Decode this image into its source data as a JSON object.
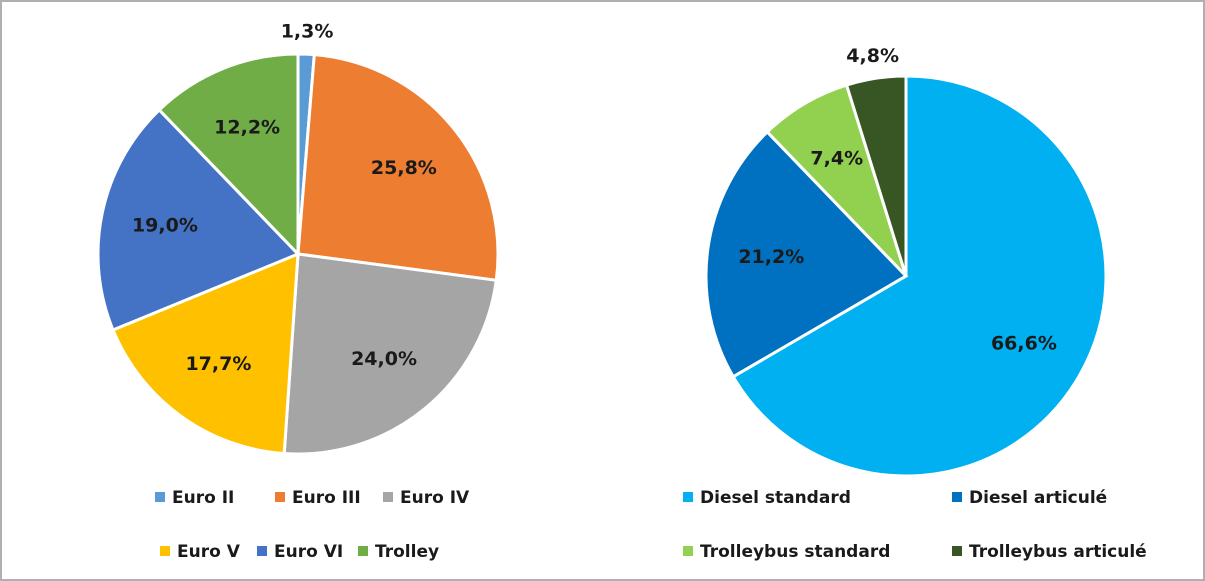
{
  "chart_data": [
    {
      "type": "pie",
      "categories": [
        "Euro II",
        "Euro III",
        "Euro IV",
        "Euro V",
        "Euro VI",
        "Trolley"
      ],
      "values": [
        1.3,
        25.8,
        24.0,
        17.7,
        19.0,
        12.2
      ],
      "value_labels": [
        "1,3%",
        "25,8%",
        "24,0%",
        "17,7%",
        "19,0%",
        "12,2%"
      ],
      "colors": [
        "#5b9bd5",
        "#ed7d31",
        "#a5a5a5",
        "#ffc000",
        "#4472c4",
        "#70ad47"
      ],
      "legend": "bottom"
    },
    {
      "type": "pie",
      "categories": [
        "Diesel standard",
        "Diesel articulé",
        "Trolleybus standard",
        "Trolleybus articulé"
      ],
      "values": [
        66.6,
        21.2,
        7.4,
        4.8
      ],
      "value_labels": [
        "66,6%",
        "21,2%",
        "7,4%",
        "4,8%"
      ],
      "colors": [
        "#00b0f0",
        "#0070c0",
        "#92d050",
        "#375623"
      ],
      "legend": "bottom"
    }
  ]
}
